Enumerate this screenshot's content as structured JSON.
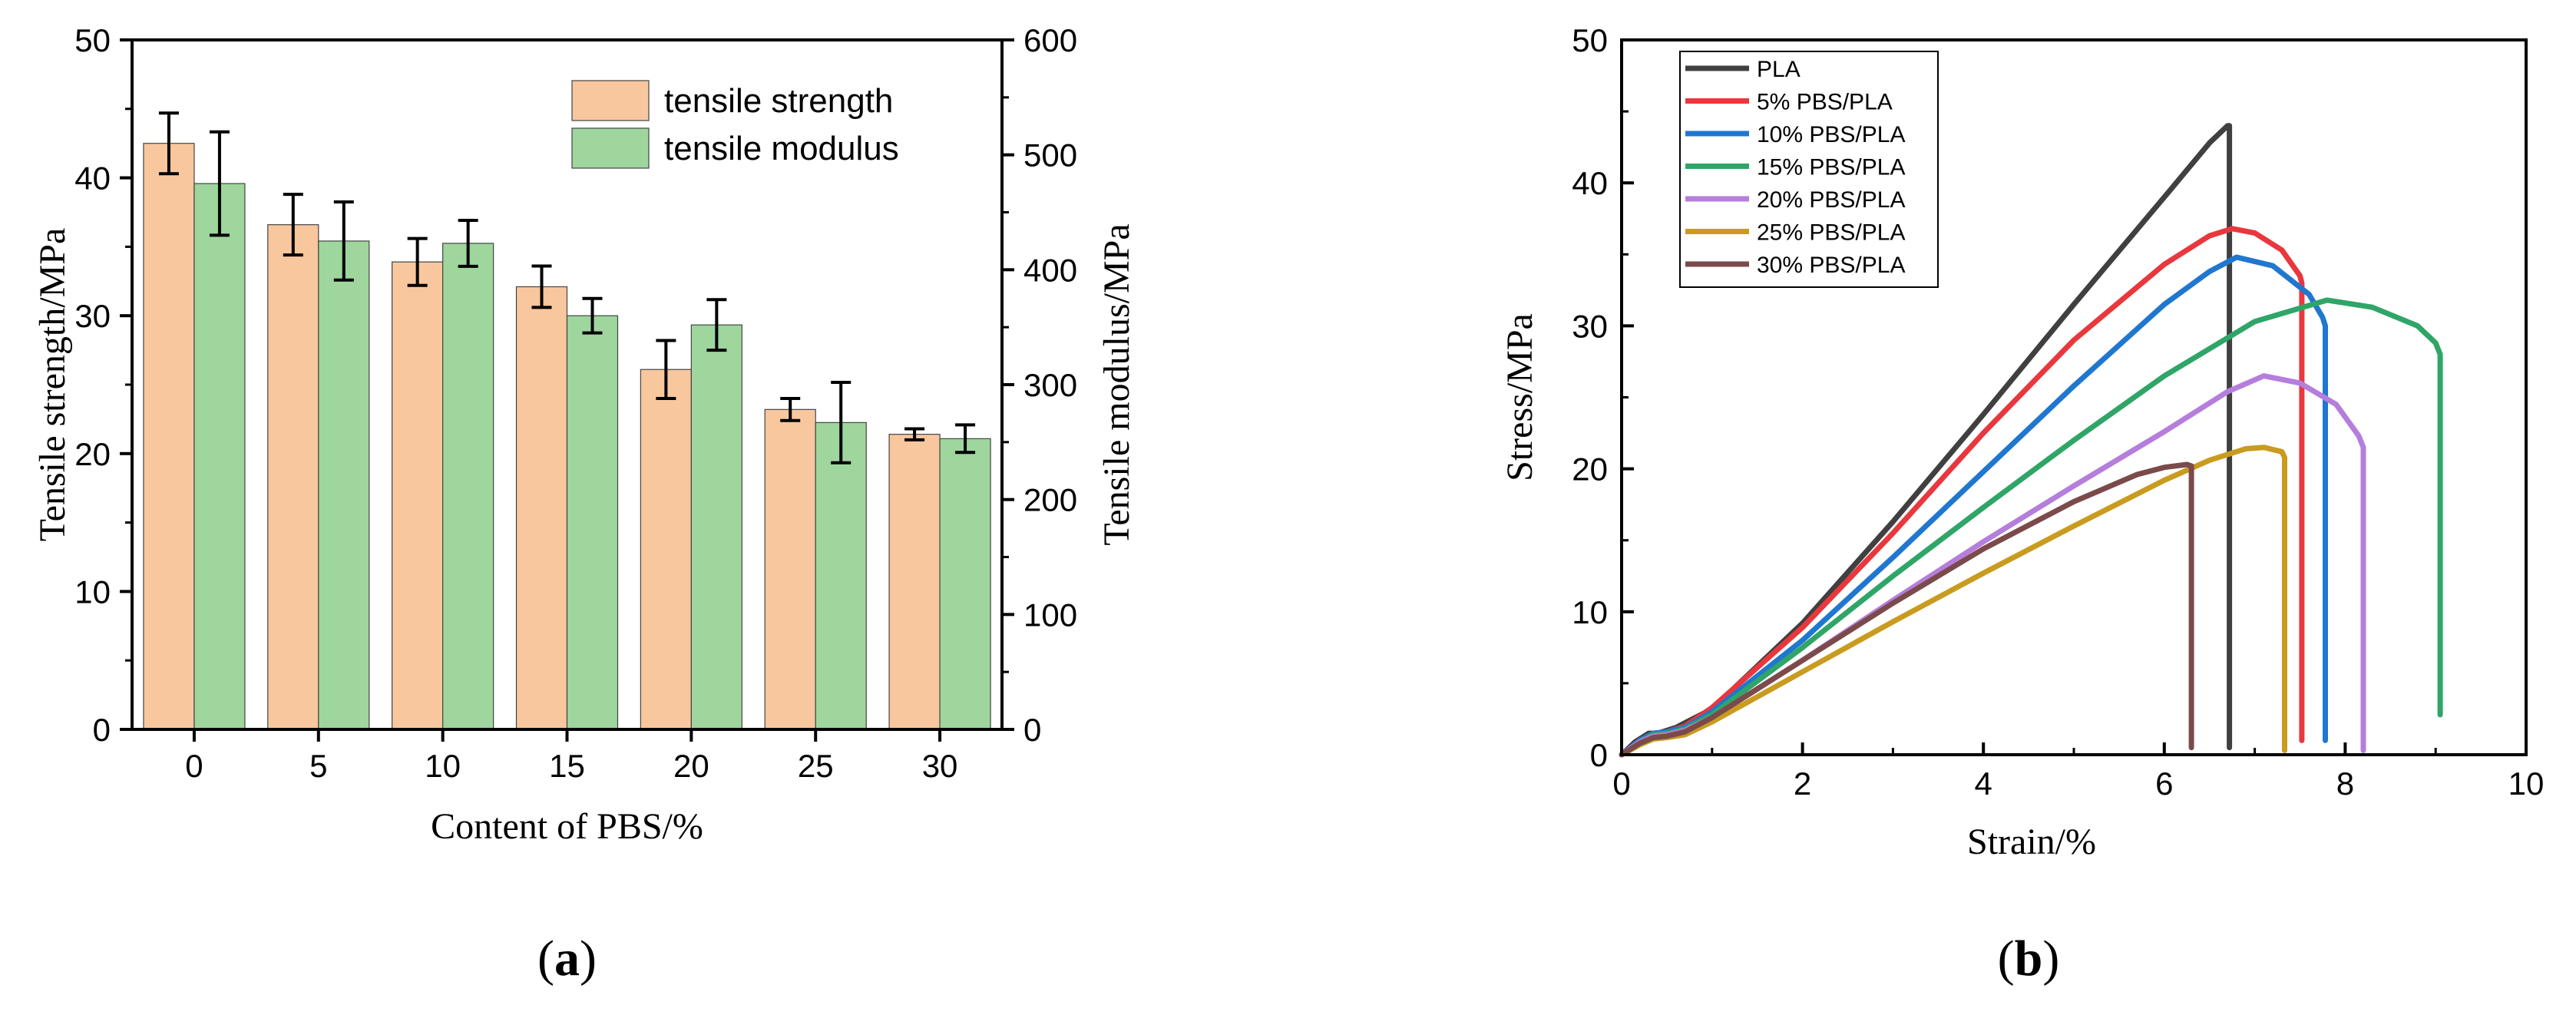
{
  "chart_data": [
    {
      "type": "bar",
      "panel_label": "(a)",
      "panel_letter": "a",
      "categories": [
        "0",
        "5",
        "10",
        "15",
        "20",
        "25",
        "30"
      ],
      "xlabel": "Content of PBS/%",
      "ylabel": "Tensile strength/MPa",
      "ylabel_right": "Tensile modulus/MPa",
      "ylim": [
        0,
        50
      ],
      "ylim_right": [
        0,
        600
      ],
      "yticks": [
        "0",
        "10",
        "20",
        "30",
        "40",
        "50"
      ],
      "yticks_right": [
        "0",
        "100",
        "200",
        "300",
        "400",
        "500",
        "600"
      ],
      "legend_position": "top-right",
      "series": [
        {
          "name": "tensile strength",
          "axis": "left",
          "color": "#F9C79E",
          "values": [
            42.5,
            36.6,
            33.9,
            32.1,
            26.1,
            23.2,
            21.4
          ],
          "errors": [
            2.2,
            2.2,
            1.7,
            1.5,
            2.1,
            0.8,
            0.4
          ]
        },
        {
          "name": "tensile modulus",
          "axis": "right",
          "color": "#9ED69E",
          "values": [
            475,
            425,
            423,
            360,
            352,
            267,
            253
          ],
          "errors": [
            45,
            34,
            20,
            15,
            22,
            35,
            12
          ]
        }
      ]
    },
    {
      "type": "line",
      "panel_label": "(b)",
      "panel_letter": "b",
      "xlabel": "Strain/%",
      "ylabel": "Stress/MPa",
      "xlim": [
        0,
        10
      ],
      "ylim": [
        0,
        50
      ],
      "xticks": [
        "0",
        "2",
        "4",
        "6",
        "8",
        "10"
      ],
      "yticks": [
        "0",
        "10",
        "20",
        "30",
        "40",
        "50"
      ],
      "legend_position": "top-left",
      "series": [
        {
          "name": "PLA",
          "color": "#404040",
          "x": [
            0,
            0.15,
            0.3,
            0.4,
            0.6,
            1.0,
            2.0,
            3.0,
            4.0,
            5.0,
            6.0,
            6.5,
            6.7,
            6.72,
            6.72
          ],
          "y": [
            0,
            0.9,
            1.5,
            1.5,
            1.9,
            3.2,
            9.2,
            16.3,
            23.8,
            31.5,
            39.0,
            42.8,
            44.0,
            44.0,
            0.5
          ]
        },
        {
          "name": "5% PBS/PLA",
          "color": "#E8383D",
          "x": [
            0,
            0.2,
            0.35,
            0.5,
            0.7,
            1.0,
            2.0,
            3.0,
            4.0,
            5.0,
            6.0,
            6.5,
            6.75,
            7.0,
            7.3,
            7.5,
            7.52,
            7.52
          ],
          "y": [
            0,
            1.0,
            1.5,
            1.6,
            2.0,
            3.3,
            8.9,
            15.5,
            22.5,
            29.0,
            34.3,
            36.3,
            36.8,
            36.5,
            35.3,
            33.5,
            33.0,
            1.0
          ]
        },
        {
          "name": "10% PBS/PLA",
          "color": "#1F77D0",
          "x": [
            0,
            0.2,
            0.35,
            0.5,
            0.7,
            1.0,
            2.0,
            3.0,
            4.0,
            5.0,
            6.0,
            6.5,
            6.8,
            7.2,
            7.6,
            7.75,
            7.78,
            7.78
          ],
          "y": [
            0,
            1.0,
            1.5,
            1.6,
            1.9,
            3.0,
            8.0,
            13.8,
            19.8,
            25.8,
            31.5,
            33.8,
            34.8,
            34.2,
            32.2,
            30.6,
            30.0,
            1.0
          ]
        },
        {
          "name": "15% PBS/PLA",
          "color": "#2FA567",
          "x": [
            0,
            0.2,
            0.35,
            0.5,
            0.7,
            1.0,
            2.0,
            3.0,
            4.0,
            5.0,
            6.0,
            7.0,
            7.8,
            8.3,
            8.8,
            9.0,
            9.05,
            9.05
          ],
          "y": [
            0,
            0.9,
            1.4,
            1.5,
            1.8,
            2.8,
            7.5,
            12.5,
            17.3,
            22.0,
            26.5,
            30.3,
            31.8,
            31.3,
            30.0,
            28.8,
            28.0,
            2.8
          ]
        },
        {
          "name": "20% PBS/PLA",
          "color": "#B57EDC",
          "x": [
            0,
            0.2,
            0.35,
            0.5,
            0.7,
            1.0,
            2.0,
            3.0,
            4.0,
            5.0,
            6.0,
            6.7,
            7.1,
            7.5,
            7.9,
            8.15,
            8.2,
            8.2
          ],
          "y": [
            0,
            0.9,
            1.3,
            1.4,
            1.7,
            2.6,
            6.6,
            10.8,
            14.9,
            18.8,
            22.6,
            25.4,
            26.5,
            26.0,
            24.5,
            22.3,
            21.5,
            0.3
          ]
        },
        {
          "name": "25% PBS/PLA",
          "color": "#C99B1E",
          "x": [
            0,
            0.2,
            0.35,
            0.5,
            0.7,
            1.0,
            2.0,
            3.0,
            4.0,
            5.0,
            6.0,
            6.5,
            6.9,
            7.1,
            7.3,
            7.33,
            7.33
          ],
          "y": [
            0,
            0.7,
            1.1,
            1.2,
            1.4,
            2.3,
            5.8,
            9.3,
            12.7,
            16.0,
            19.2,
            20.6,
            21.4,
            21.5,
            21.2,
            20.8,
            0.3
          ]
        },
        {
          "name": "30% PBS/PLA",
          "color": "#7B4A4A",
          "x": [
            0,
            0.2,
            0.35,
            0.5,
            0.7,
            1.0,
            2.0,
            3.0,
            4.0,
            5.0,
            5.7,
            6.0,
            6.25,
            6.3,
            6.3
          ],
          "y": [
            0,
            0.8,
            1.2,
            1.3,
            1.6,
            2.6,
            6.6,
            10.6,
            14.4,
            17.7,
            19.6,
            20.1,
            20.3,
            20.2,
            0.5
          ]
        }
      ]
    }
  ]
}
